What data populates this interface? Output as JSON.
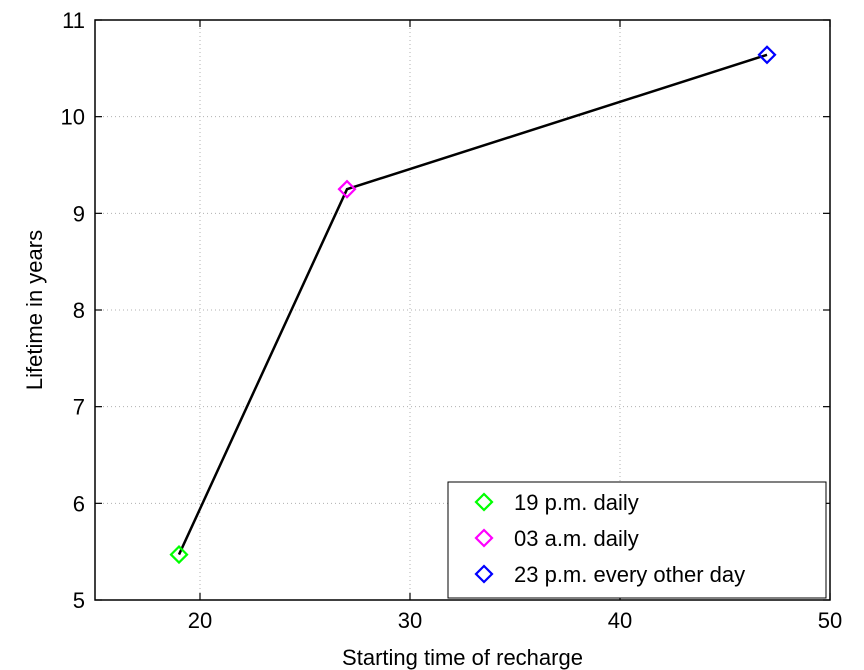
{
  "chart_data": {
    "type": "line",
    "xlabel": "Starting time of recharge",
    "ylabel": "Lifetime in years",
    "xlim": [
      15,
      50
    ],
    "ylim": [
      5,
      11
    ],
    "xticks": [
      20,
      30,
      40,
      50
    ],
    "yticks": [
      5,
      6,
      7,
      8,
      9,
      10,
      11
    ],
    "grid": true,
    "legend_position": "bottom-right",
    "line": {
      "x": [
        19,
        27,
        47
      ],
      "y": [
        5.47,
        9.25,
        10.64
      ],
      "color": "#000000"
    },
    "series": [
      {
        "name": "19 p.m. daily",
        "x": [
          19
        ],
        "y": [
          5.47
        ],
        "color": "#00ff00",
        "marker": "diamond"
      },
      {
        "name": "03 a.m. daily",
        "x": [
          27
        ],
        "y": [
          9.25
        ],
        "color": "#ff00ff",
        "marker": "diamond"
      },
      {
        "name": "23 p.m. every other day",
        "x": [
          47
        ],
        "y": [
          10.64
        ],
        "color": "#0000ff",
        "marker": "diamond"
      }
    ]
  }
}
